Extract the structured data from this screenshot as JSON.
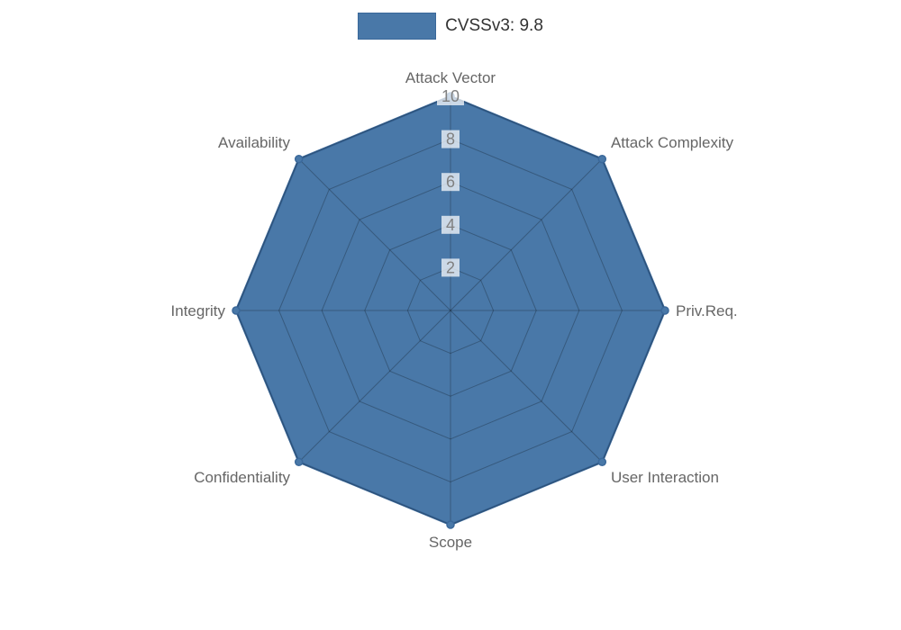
{
  "page": {
    "background": "#ffffff"
  },
  "legend": {
    "label": "CVSSv3: 9.8"
  },
  "chart_data": {
    "type": "radar",
    "title": "",
    "categories": [
      "Attack Vector",
      "Attack Complexity",
      "Priv.Req.",
      "User Interaction",
      "Scope",
      "Confidentiality",
      "Integrity",
      "Availability"
    ],
    "series": [
      {
        "name": "CVSSv3: 9.8",
        "values": [
          10,
          10,
          10,
          10,
          10,
          10,
          10,
          10
        ],
        "fill_color": "#4978a8",
        "border_color": "#3a689a"
      }
    ],
    "ticks": [
      2,
      4,
      6,
      8,
      10
    ],
    "rlim": [
      0,
      10
    ],
    "grid": true,
    "grid_color": "rgba(0,0,0,0.25)",
    "tick_label_color": "#808080",
    "tick_backdrop_color": "rgba(255,255,255,0.72)",
    "category_label_color": "#666666",
    "legend_position": "top"
  }
}
